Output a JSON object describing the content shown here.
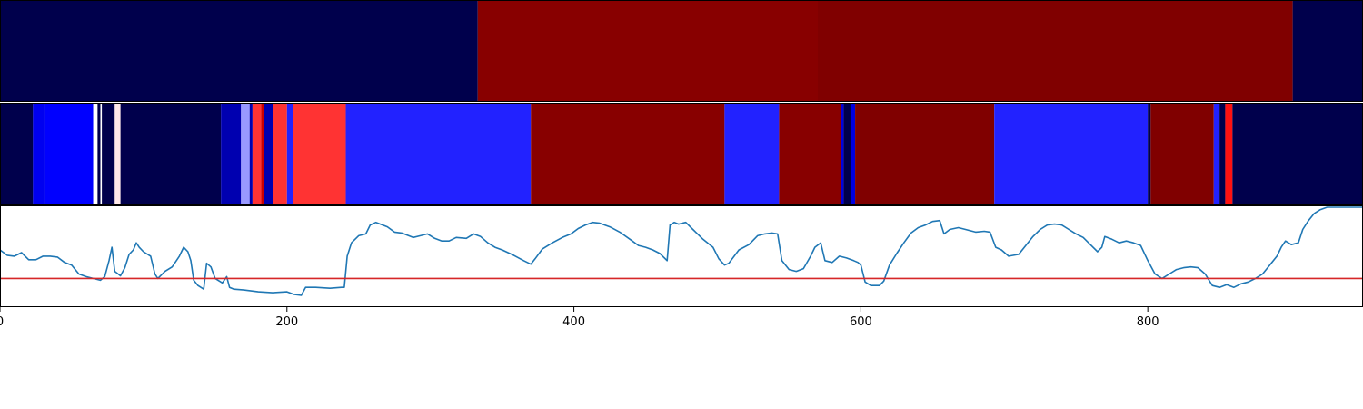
{
  "chart_data": [
    {
      "type": "heatmap",
      "segments": [
        {
          "start": 0,
          "end": 333,
          "color": "#00004c"
        },
        {
          "start": 333,
          "end": 570,
          "color": "#880000"
        },
        {
          "start": 570,
          "end": 901,
          "color": "#800000"
        },
        {
          "start": 901,
          "end": 950,
          "color": "#00004c"
        }
      ]
    },
    {
      "type": "heatmap",
      "segments": [
        {
          "start": 0,
          "end": 23,
          "color": "#00004c"
        },
        {
          "start": 23,
          "end": 31,
          "color": "#0000f0"
        },
        {
          "start": 31,
          "end": 65,
          "color": "#0000ff"
        },
        {
          "start": 65,
          "end": 68,
          "color": "#ffffff"
        },
        {
          "start": 68,
          "end": 70,
          "color": "#00004c"
        },
        {
          "start": 70,
          "end": 71,
          "color": "#ffffff"
        },
        {
          "start": 71,
          "end": 80,
          "color": "#00004c"
        },
        {
          "start": 80,
          "end": 84,
          "color": "#ffe8e8"
        },
        {
          "start": 84,
          "end": 154,
          "color": "#00004c"
        },
        {
          "start": 154,
          "end": 168,
          "color": "#0000b0"
        },
        {
          "start": 168,
          "end": 174,
          "color": "#9999ff"
        },
        {
          "start": 174,
          "end": 176,
          "color": "#0000b0"
        },
        {
          "start": 176,
          "end": 182,
          "color": "#ff3333"
        },
        {
          "start": 182,
          "end": 184,
          "color": "#cc0000"
        },
        {
          "start": 184,
          "end": 190,
          "color": "#0000b0"
        },
        {
          "start": 190,
          "end": 200,
          "color": "#ff3333"
        },
        {
          "start": 200,
          "end": 204,
          "color": "#2222ff"
        },
        {
          "start": 204,
          "end": 241,
          "color": "#ff3333"
        },
        {
          "start": 241,
          "end": 370,
          "color": "#2222ff"
        },
        {
          "start": 370,
          "end": 505,
          "color": "#880000"
        },
        {
          "start": 505,
          "end": 543,
          "color": "#2222ff"
        },
        {
          "start": 543,
          "end": 586,
          "color": "#880000"
        },
        {
          "start": 586,
          "end": 588,
          "color": "#0000e0"
        },
        {
          "start": 588,
          "end": 593,
          "color": "#00004c"
        },
        {
          "start": 593,
          "end": 596,
          "color": "#0000e0"
        },
        {
          "start": 596,
          "end": 693,
          "color": "#800000"
        },
        {
          "start": 693,
          "end": 800,
          "color": "#2222ff"
        },
        {
          "start": 800,
          "end": 802,
          "color": "#00004c"
        },
        {
          "start": 802,
          "end": 846,
          "color": "#800000"
        },
        {
          "start": 846,
          "end": 850,
          "color": "#2222ff"
        },
        {
          "start": 850,
          "end": 854,
          "color": "#00004c"
        },
        {
          "start": 854,
          "end": 859,
          "color": "#ff1111"
        },
        {
          "start": 859,
          "end": 950,
          "color": "#00004c"
        }
      ]
    },
    {
      "type": "line",
      "color": "#1f77b4",
      "xlim": [
        0,
        950
      ],
      "ylim": [
        0,
        1
      ],
      "threshold": 0.2,
      "threshold_color": "#d62728",
      "x_ticks": [
        0,
        200,
        400,
        600,
        800
      ],
      "x_tick_labels": [
        "0",
        "200",
        "400",
        "600",
        "800"
      ],
      "points": [
        [
          0,
          0.52
        ],
        [
          5,
          0.46
        ],
        [
          10,
          0.45
        ],
        [
          15,
          0.49
        ],
        [
          20,
          0.41
        ],
        [
          25,
          0.41
        ],
        [
          30,
          0.45
        ],
        [
          35,
          0.45
        ],
        [
          40,
          0.44
        ],
        [
          45,
          0.38
        ],
        [
          50,
          0.35
        ],
        [
          55,
          0.25
        ],
        [
          60,
          0.22
        ],
        [
          65,
          0.2
        ],
        [
          70,
          0.18
        ],
        [
          73,
          0.22
        ],
        [
          76,
          0.4
        ],
        [
          78,
          0.55
        ],
        [
          80,
          0.28
        ],
        [
          84,
          0.23
        ],
        [
          87,
          0.32
        ],
        [
          90,
          0.47
        ],
        [
          93,
          0.52
        ],
        [
          95,
          0.6
        ],
        [
          97,
          0.55
        ],
        [
          100,
          0.5
        ],
        [
          105,
          0.45
        ],
        [
          108,
          0.25
        ],
        [
          110,
          0.2
        ],
        [
          115,
          0.28
        ],
        [
          120,
          0.33
        ],
        [
          125,
          0.45
        ],
        [
          128,
          0.55
        ],
        [
          131,
          0.5
        ],
        [
          133,
          0.4
        ],
        [
          135,
          0.18
        ],
        [
          138,
          0.12
        ],
        [
          142,
          0.08
        ],
        [
          144,
          0.37
        ],
        [
          147,
          0.33
        ],
        [
          150,
          0.2
        ],
        [
          155,
          0.15
        ],
        [
          158,
          0.22
        ],
        [
          160,
          0.1
        ],
        [
          163,
          0.08
        ],
        [
          170,
          0.07
        ],
        [
          180,
          0.05
        ],
        [
          190,
          0.04
        ],
        [
          200,
          0.05
        ],
        [
          205,
          0.02
        ],
        [
          210,
          0.01
        ],
        [
          213,
          0.1
        ],
        [
          220,
          0.1
        ],
        [
          230,
          0.09
        ],
        [
          238,
          0.1
        ],
        [
          240,
          0.1
        ],
        [
          242,
          0.45
        ],
        [
          245,
          0.6
        ],
        [
          250,
          0.68
        ],
        [
          255,
          0.7
        ],
        [
          258,
          0.8
        ],
        [
          262,
          0.83
        ],
        [
          270,
          0.78
        ],
        [
          275,
          0.72
        ],
        [
          280,
          0.71
        ],
        [
          288,
          0.66
        ],
        [
          293,
          0.68
        ],
        [
          298,
          0.7
        ],
        [
          303,
          0.65
        ],
        [
          308,
          0.62
        ],
        [
          313,
          0.62
        ],
        [
          318,
          0.66
        ],
        [
          325,
          0.65
        ],
        [
          330,
          0.7
        ],
        [
          335,
          0.67
        ],
        [
          340,
          0.6
        ],
        [
          345,
          0.55
        ],
        [
          350,
          0.52
        ],
        [
          358,
          0.46
        ],
        [
          365,
          0.4
        ],
        [
          370,
          0.36
        ],
        [
          373,
          0.42
        ],
        [
          378,
          0.53
        ],
        [
          385,
          0.6
        ],
        [
          392,
          0.66
        ],
        [
          398,
          0.7
        ],
        [
          403,
          0.76
        ],
        [
          408,
          0.8
        ],
        [
          413,
          0.83
        ],
        [
          418,
          0.82
        ],
        [
          425,
          0.78
        ],
        [
          432,
          0.72
        ],
        [
          440,
          0.63
        ],
        [
          445,
          0.57
        ],
        [
          450,
          0.55
        ],
        [
          455,
          0.52
        ],
        [
          460,
          0.48
        ],
        [
          465,
          0.4
        ],
        [
          467,
          0.8
        ],
        [
          470,
          0.83
        ],
        [
          473,
          0.81
        ],
        [
          478,
          0.83
        ],
        [
          483,
          0.75
        ],
        [
          490,
          0.64
        ],
        [
          497,
          0.55
        ],
        [
          501,
          0.42
        ],
        [
          505,
          0.35
        ],
        [
          508,
          0.37
        ],
        [
          515,
          0.52
        ],
        [
          522,
          0.58
        ],
        [
          528,
          0.68
        ],
        [
          533,
          0.7
        ],
        [
          538,
          0.71
        ],
        [
          542,
          0.7
        ],
        [
          545,
          0.4
        ],
        [
          550,
          0.3
        ],
        [
          555,
          0.28
        ],
        [
          560,
          0.31
        ],
        [
          565,
          0.45
        ],
        [
          568,
          0.55
        ],
        [
          572,
          0.6
        ],
        [
          575,
          0.4
        ],
        [
          580,
          0.38
        ],
        [
          585,
          0.45
        ],
        [
          590,
          0.43
        ],
        [
          595,
          0.4
        ],
        [
          598,
          0.38
        ],
        [
          600,
          0.35
        ],
        [
          603,
          0.16
        ],
        [
          607,
          0.12
        ],
        [
          613,
          0.12
        ],
        [
          616,
          0.17
        ],
        [
          620,
          0.35
        ],
        [
          625,
          0.48
        ],
        [
          630,
          0.6
        ],
        [
          635,
          0.71
        ],
        [
          640,
          0.77
        ],
        [
          645,
          0.8
        ],
        [
          650,
          0.84
        ],
        [
          655,
          0.85
        ],
        [
          658,
          0.7
        ],
        [
          662,
          0.75
        ],
        [
          668,
          0.77
        ],
        [
          673,
          0.75
        ],
        [
          680,
          0.72
        ],
        [
          686,
          0.73
        ],
        [
          690,
          0.72
        ],
        [
          694,
          0.55
        ],
        [
          698,
          0.52
        ],
        [
          703,
          0.45
        ],
        [
          710,
          0.47
        ],
        [
          715,
          0.57
        ],
        [
          720,
          0.67
        ],
        [
          725,
          0.75
        ],
        [
          730,
          0.8
        ],
        [
          735,
          0.81
        ],
        [
          740,
          0.8
        ],
        [
          745,
          0.75
        ],
        [
          750,
          0.7
        ],
        [
          755,
          0.66
        ],
        [
          760,
          0.58
        ],
        [
          765,
          0.5
        ],
        [
          768,
          0.55
        ],
        [
          770,
          0.67
        ],
        [
          775,
          0.64
        ],
        [
          780,
          0.6
        ],
        [
          785,
          0.62
        ],
        [
          790,
          0.6
        ],
        [
          795,
          0.57
        ],
        [
          800,
          0.4
        ],
        [
          805,
          0.25
        ],
        [
          810,
          0.2
        ],
        [
          815,
          0.25
        ],
        [
          820,
          0.3
        ],
        [
          825,
          0.32
        ],
        [
          830,
          0.33
        ],
        [
          835,
          0.32
        ],
        [
          840,
          0.25
        ],
        [
          845,
          0.12
        ],
        [
          850,
          0.1
        ],
        [
          855,
          0.13
        ],
        [
          860,
          0.1
        ],
        [
          865,
          0.14
        ],
        [
          870,
          0.16
        ],
        [
          875,
          0.2
        ],
        [
          880,
          0.25
        ],
        [
          885,
          0.35
        ],
        [
          890,
          0.45
        ],
        [
          893,
          0.55
        ],
        [
          896,
          0.62
        ],
        [
          900,
          0.58
        ],
        [
          905,
          0.6
        ],
        [
          908,
          0.75
        ],
        [
          912,
          0.85
        ],
        [
          916,
          0.93
        ],
        [
          920,
          0.97
        ],
        [
          925,
          1.0
        ],
        [
          935,
          1.0
        ],
        [
          950,
          1.0
        ]
      ]
    }
  ]
}
